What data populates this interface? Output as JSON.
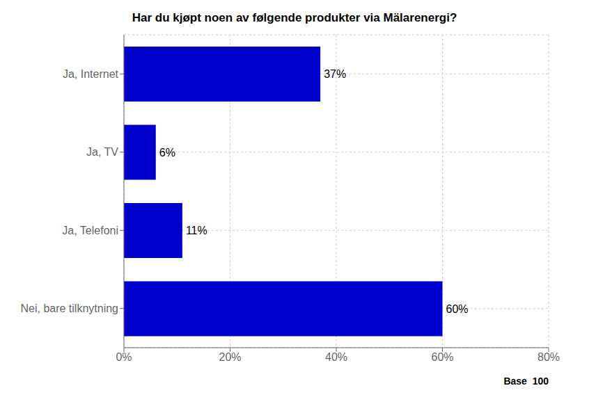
{
  "chart_data": {
    "type": "bar",
    "orientation": "horizontal",
    "title": "Har du kjøpt noen av følgende produkter via Mälarenergi?",
    "categories": [
      "Ja, Internet",
      "Ja, TV",
      "Ja, Telefoni",
      "Nei, bare tilknytning"
    ],
    "values": [
      37,
      6,
      11,
      60
    ],
    "value_labels": [
      "37%",
      "6%",
      "11%",
      "60%"
    ],
    "data_labels": true,
    "color": "#0000CC",
    "xlim": [
      0,
      80
    ],
    "xticks": [
      {
        "value": 0,
        "label": "0%"
      },
      {
        "value": 20,
        "label": "20%"
      },
      {
        "value": 40,
        "label": "40%"
      },
      {
        "value": 60,
        "label": "60%"
      },
      {
        "value": 80,
        "label": "80%"
      }
    ],
    "grid": true,
    "annotation": "Base  100"
  }
}
